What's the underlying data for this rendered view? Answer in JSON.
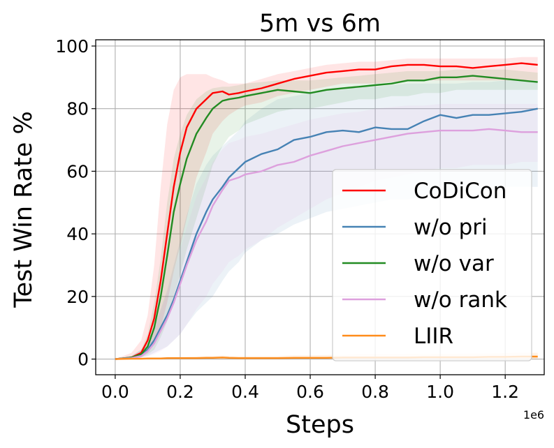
{
  "chart_data": {
    "type": "line",
    "title": "5m vs 6m",
    "xlabel": "Steps",
    "ylabel": "Test Win Rate %",
    "x_scale_label": "1e6",
    "xlim": [
      -0.06,
      1.32
    ],
    "ylim": [
      -5,
      102
    ],
    "x_ticks": [
      0.0,
      0.2,
      0.4,
      0.6,
      0.8,
      1.0,
      1.2
    ],
    "x_tick_labels": [
      "0.0",
      "0.2",
      "0.4",
      "0.6",
      "0.8",
      "1.0",
      "1.2"
    ],
    "y_ticks": [
      0,
      20,
      40,
      60,
      80,
      100
    ],
    "y_tick_labels": [
      "0",
      "20",
      "40",
      "60",
      "80",
      "100"
    ],
    "grid": true,
    "legend_position": "lower-right",
    "x": [
      0.0,
      0.05,
      0.08,
      0.1,
      0.12,
      0.14,
      0.16,
      0.18,
      0.2,
      0.22,
      0.25,
      0.28,
      0.3,
      0.33,
      0.35,
      0.38,
      0.4,
      0.45,
      0.5,
      0.55,
      0.6,
      0.65,
      0.7,
      0.75,
      0.8,
      0.85,
      0.9,
      0.95,
      1.0,
      1.05,
      1.1,
      1.15,
      1.2,
      1.25,
      1.3
    ],
    "series": [
      {
        "name": "CoDiCon",
        "color": "#ff0000",
        "values": [
          0,
          0.5,
          2,
          6,
          13,
          25,
          40,
          55,
          66,
          74,
          80,
          83,
          85,
          85.5,
          84.5,
          85,
          85.5,
          86.5,
          88,
          89.5,
          90.5,
          91.5,
          92,
          92.5,
          92.5,
          93.5,
          94,
          94,
          93.5,
          93.5,
          93,
          93.5,
          94,
          94.5,
          94
        ],
        "band_lower": [
          0,
          0,
          0.5,
          2,
          5,
          10,
          18,
          28,
          36,
          45,
          58,
          66,
          72,
          76,
          78,
          80,
          81,
          82,
          84,
          85,
          86,
          87,
          88,
          88,
          88,
          88.5,
          89,
          89,
          89,
          89,
          89,
          89,
          89,
          89,
          89
        ],
        "band_upper": [
          0,
          2,
          6,
          14,
          30,
          55,
          75,
          86,
          90,
          91,
          91,
          91,
          90,
          89,
          88,
          88,
          88,
          89.5,
          91,
          92,
          93,
          94,
          94.5,
          95,
          95,
          95.5,
          96,
          96,
          96,
          96,
          96,
          96,
          96,
          96.5,
          96.5
        ]
      },
      {
        "name": "w/o pri",
        "color": "#4682b4",
        "values": [
          0,
          0.3,
          1.5,
          3,
          6,
          10,
          14,
          19,
          25,
          31,
          40,
          47,
          51,
          55,
          58,
          61,
          63,
          65.5,
          67,
          70,
          71,
          72.5,
          73,
          72.5,
          74,
          73.5,
          73.5,
          76,
          78,
          77,
          78,
          78,
          78.5,
          79,
          80
        ],
        "band_lower": [
          0,
          0,
          0.5,
          1,
          2,
          3,
          4,
          6,
          8,
          11,
          15,
          18,
          20,
          25,
          28,
          31,
          34,
          38,
          40,
          43,
          45,
          47,
          48,
          49,
          50,
          51,
          51,
          52,
          53,
          53,
          54,
          54,
          55,
          55,
          55
        ],
        "band_upper": [
          0,
          1,
          3,
          6,
          10,
          16,
          22,
          30,
          38,
          46,
          56,
          62,
          65,
          68,
          70,
          73,
          76,
          80,
          83,
          84,
          85,
          86,
          86,
          87,
          87,
          87.5,
          88,
          88,
          88,
          88,
          88.5,
          88.5,
          89,
          89,
          89
        ]
      },
      {
        "name": "w/o var",
        "color": "#228b22",
        "values": [
          0,
          0.5,
          1.5,
          4,
          10,
          20,
          33,
          47,
          56,
          64,
          72,
          77,
          80,
          82.5,
          83,
          83.5,
          84,
          85,
          86,
          85.5,
          85,
          86,
          86.5,
          87,
          87.5,
          88,
          89,
          89,
          90,
          90,
          90.5,
          90,
          89.5,
          89,
          88.5
        ],
        "band_lower": [
          0,
          0,
          0.5,
          1.5,
          3,
          7,
          12,
          20,
          27,
          35,
          45,
          55,
          62,
          68,
          71,
          73,
          75,
          77,
          79,
          80,
          80,
          81,
          82,
          83,
          83,
          84,
          84,
          85,
          85,
          86,
          86,
          86,
          86,
          86,
          86
        ],
        "band_upper": [
          0,
          1,
          3,
          8,
          18,
          32,
          50,
          64,
          72,
          78,
          83,
          85.5,
          86.5,
          87,
          87,
          87.5,
          88,
          88.5,
          89,
          89,
          89,
          89.5,
          90,
          90.5,
          91,
          91.5,
          92,
          92,
          92,
          92.5,
          92.5,
          92.5,
          92.5,
          92,
          91.5
        ]
      },
      {
        "name": "w/o rank",
        "color": "#dda0dd",
        "values": [
          0,
          0.3,
          1,
          2.5,
          5,
          9,
          13,
          18,
          24,
          30,
          38,
          44,
          49,
          54,
          57,
          58,
          59,
          60,
          62,
          63,
          65,
          66.5,
          68,
          69,
          70,
          71,
          72,
          72.5,
          73,
          73,
          73,
          73.5,
          73,
          72.5,
          72.5
        ],
        "band_lower": [
          0,
          0,
          0.3,
          0.8,
          1.5,
          2.5,
          4,
          6,
          8,
          11,
          16,
          20,
          24,
          28,
          31,
          33,
          35,
          38,
          42,
          45,
          48,
          51,
          53,
          55,
          57,
          58,
          59,
          60,
          61,
          61,
          62,
          62,
          62,
          63,
          63
        ],
        "band_upper": [
          0,
          1,
          2.5,
          5,
          9,
          15,
          21,
          28,
          35,
          42,
          52,
          58,
          63,
          67,
          69,
          70,
          71,
          72,
          73.5,
          75,
          76.5,
          77.5,
          78.5,
          79,
          80,
          80.5,
          81,
          81,
          81.5,
          81.5,
          81.5,
          81.5,
          81.5,
          81.5,
          81.5
        ]
      },
      {
        "name": "LIIR",
        "color": "#ff8c1a",
        "values": [
          0,
          0.1,
          0.1,
          0.2,
          0.2,
          0.2,
          0.3,
          0.3,
          0.3,
          0.3,
          0.3,
          0.4,
          0.4,
          0.5,
          0.4,
          0.3,
          0.3,
          0.3,
          0.3,
          0.4,
          0.4,
          0.4,
          0.5,
          0.5,
          0.5,
          0.5,
          0.5,
          0.6,
          0.6,
          0.6,
          0.6,
          0.7,
          0.7,
          0.8,
          0.8
        ],
        "band_lower": [
          0,
          0,
          0,
          0,
          0,
          0,
          0,
          0,
          0,
          0,
          0,
          0,
          0,
          0,
          0,
          0,
          0,
          0,
          0,
          0,
          0,
          0,
          0,
          0,
          0,
          0,
          0,
          0,
          0,
          0,
          0,
          0,
          0,
          0,
          0
        ],
        "band_upper": [
          0,
          0.3,
          0.3,
          0.5,
          0.5,
          0.5,
          0.6,
          0.7,
          0.7,
          0.8,
          0.9,
          1,
          1,
          1.2,
          1,
          1,
          1,
          1,
          1,
          1.2,
          1.2,
          1.3,
          1.4,
          1.5,
          1.5,
          1.5,
          1.6,
          1.6,
          1.7,
          1.7,
          1.8,
          1.8,
          1.9,
          2,
          2
        ]
      }
    ]
  }
}
